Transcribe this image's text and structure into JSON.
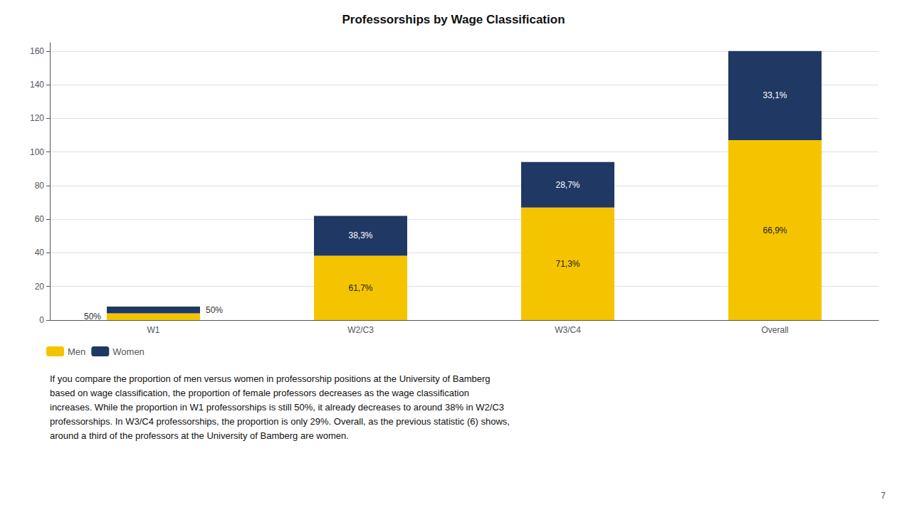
{
  "chart_data": {
    "type": "bar",
    "title": "Professorships by Wage Classification",
    "categories": [
      "W1",
      "W2/C3",
      "W3/C4",
      "Overall"
    ],
    "series": [
      {
        "name": "Men",
        "color": "#F5C400",
        "values": [
          4,
          38.3,
          67.0,
          107.0
        ],
        "percent_labels": [
          "50%",
          "61,7%",
          "71,3%",
          "66,9%"
        ]
      },
      {
        "name": "Women",
        "color": "#1F3864",
        "values": [
          4,
          23.7,
          27.0,
          53.0
        ],
        "percent_labels": [
          "50%",
          "38,3%",
          "28,7%",
          "33,1%"
        ]
      }
    ],
    "stacked": true,
    "ylim": [
      0,
      165
    ],
    "yticks": [
      0,
      20,
      40,
      60,
      80,
      100,
      120,
      140,
      160
    ],
    "grid": true,
    "legend": "lower left",
    "caption": "If you compare the proportion of men versus women in professorship positions at the University of Bamberg\nbased on wage classification, the proportion of female professors decreases as the wage classification\nincreases. While the proportion in W1 professorships is still 50%, it already decreases to around 38% in W2/C3\nprofessorships. In W3/C4 professorships, the proportion is only 29%. Overall, as the previous statistic (6) shows,\naround a third of the professors at the University of Bamberg are women.",
    "page_number": "7"
  }
}
